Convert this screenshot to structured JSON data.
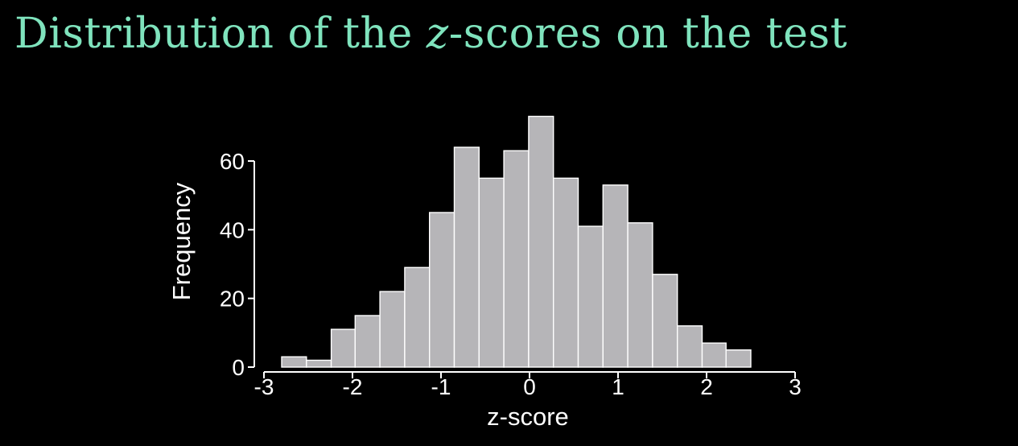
{
  "slide": {
    "title_before": "Distribution of the ",
    "title_var": "z",
    "title_after": "-scores on the test",
    "title_color": "#7fe3bd",
    "background_color": "#000000"
  },
  "chart_data": {
    "type": "bar",
    "title": "",
    "xlabel": "z-score",
    "ylabel": "Frequency",
    "xlim": [
      -3,
      3
    ],
    "ylim": [
      0,
      60
    ],
    "xticks": [
      "-3",
      "-2",
      "-1",
      "0",
      "1",
      "2",
      "3"
    ],
    "yticks": [
      "0",
      "20",
      "40",
      "60"
    ],
    "bin_edges": [
      -2.8,
      -2.52,
      -2.24,
      -1.97,
      -1.69,
      -1.41,
      -1.13,
      -0.85,
      -0.57,
      -0.29,
      -0.01,
      0.27,
      0.55,
      0.83,
      1.11,
      1.39,
      1.67,
      1.95,
      2.22,
      2.5
    ],
    "values": [
      3,
      2,
      11,
      15,
      22,
      29,
      45,
      64,
      55,
      63,
      73,
      55,
      41,
      53,
      42,
      27,
      12,
      7,
      5
    ],
    "bar_color": "#b6b5b8",
    "bar_edge_color": "#ffffff",
    "axis_color": "#ffffff",
    "text_color": "#ffffff",
    "grid": false,
    "legend": "none"
  }
}
